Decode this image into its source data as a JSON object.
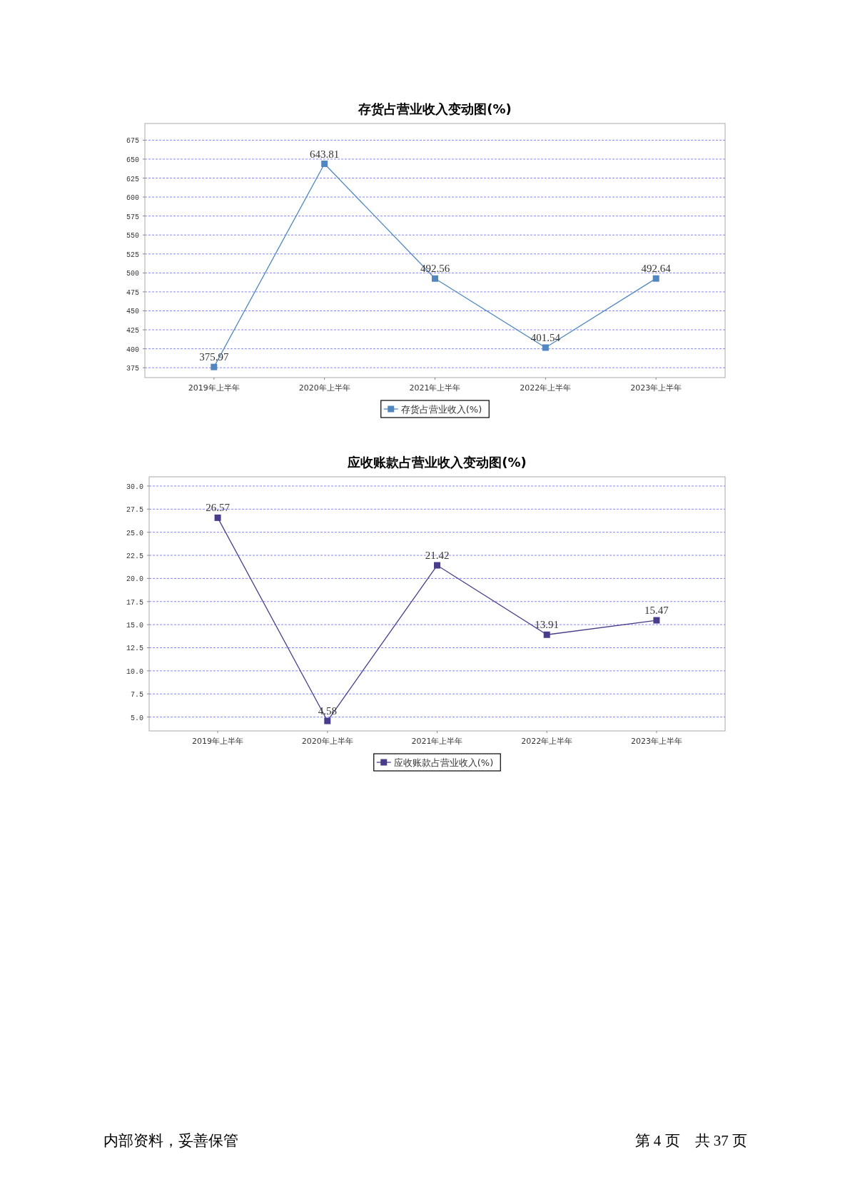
{
  "chart_data": [
    {
      "type": "line",
      "title": "存货占营业收入变动图(%)",
      "categories": [
        "2019年上半年",
        "2020年上半年",
        "2021年上半年",
        "2022年上半年",
        "2023年上半年"
      ],
      "series": [
        {
          "name": "存货占营业收入(%)",
          "color": "#5087c0",
          "values": [
            375.97,
            643.81,
            492.56,
            401.54,
            492.64
          ]
        }
      ],
      "ylim": [
        362,
        697
      ],
      "yticks": [
        375,
        400,
        425,
        450,
        475,
        500,
        525,
        550,
        575,
        600,
        625,
        650,
        675
      ],
      "grid": "y",
      "legend": "bottom",
      "marker": "square",
      "data_labels": true
    },
    {
      "type": "line",
      "title": "应收账款占营业收入变动图(%)",
      "categories": [
        "2019年上半年",
        "2020年上半年",
        "2021年上半年",
        "2022年上半年",
        "2023年上半年"
      ],
      "series": [
        {
          "name": "应收账款占营业收入(%)",
          "color": "#483d8b",
          "values": [
            26.57,
            4.58,
            21.42,
            13.91,
            15.47
          ]
        }
      ],
      "ylim": [
        3.5,
        31.0
      ],
      "yticks": [
        {
          "value": 5,
          "label": "5.0"
        },
        {
          "value": 7.5,
          "label": "7.5"
        },
        {
          "value": 10,
          "label": "10.0"
        },
        {
          "value": 12.5,
          "label": "12.5"
        },
        {
          "value": 15,
          "label": "15.0"
        },
        {
          "value": 17.5,
          "label": "17.5"
        },
        {
          "value": 20,
          "label": "20.0"
        },
        {
          "value": 22.5,
          "label": "22.5"
        },
        {
          "value": 25,
          "label": "25.0"
        },
        {
          "value": 27.5,
          "label": "27.5"
        },
        {
          "value": 30,
          "label": "30.0"
        }
      ],
      "grid": "y",
      "legend": "bottom",
      "marker": "square",
      "data_labels": true,
      "annotations": [
        "内部资料，妥善保管",
        "第 4 页　共 37 页"
      ]
    }
  ]
}
